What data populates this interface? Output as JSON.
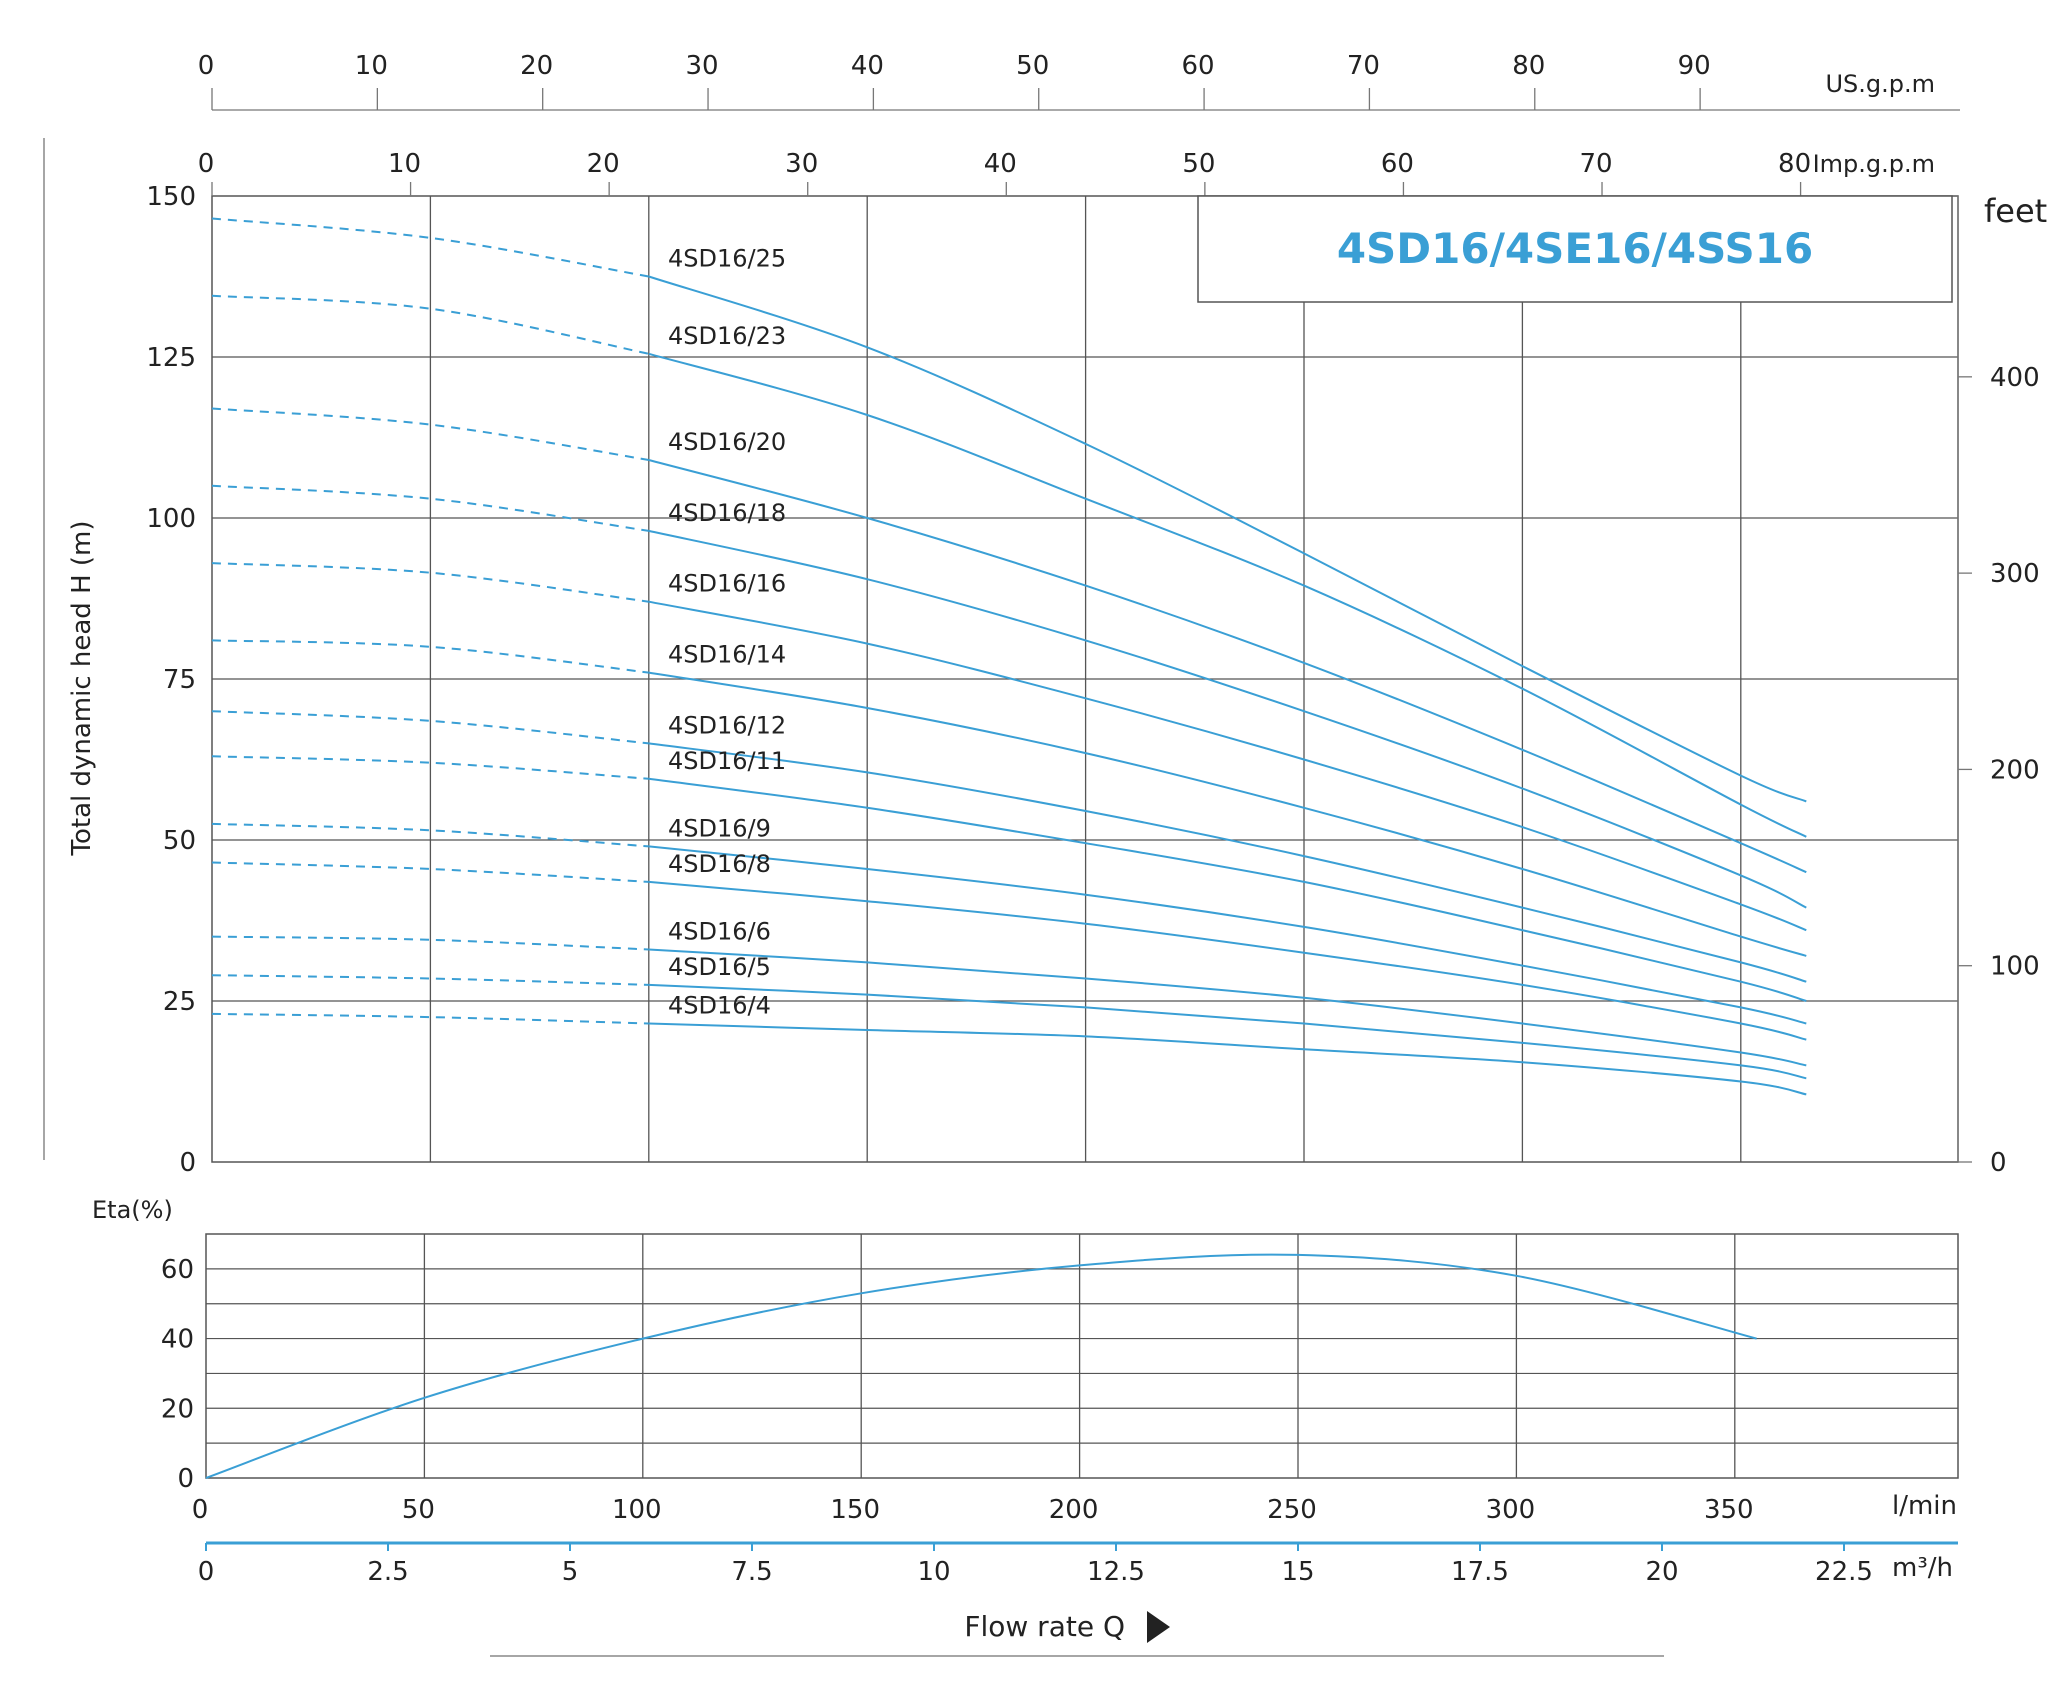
{
  "chart_data": [
    {
      "type": "line",
      "title": "4SD16/4SE16/4SS16",
      "ylabel": "Total dynamic head H (m)",
      "ylabel_right": "feet",
      "xunit_top1": "US.g.p.m",
      "xunit_top2": "Imp.g.p.m",
      "ylim": [
        0,
        150
      ],
      "y_ticks": [
        0,
        25,
        50,
        75,
        100,
        125,
        150
      ],
      "y_ticks_feet": [
        0,
        100,
        200,
        300,
        400
      ],
      "x_ticks_usgpm": [
        0,
        10,
        20,
        30,
        40,
        50,
        60,
        70,
        80,
        90
      ],
      "x_ticks_impgpm": [
        0,
        10,
        20,
        30,
        40,
        50,
        60,
        70,
        80
      ],
      "xlim_lmin": [
        0,
        400
      ],
      "grid": true,
      "dashed_segment_end_lmin": 100,
      "series": [
        {
          "name": "4SD16/25",
          "x": [
            0,
            50,
            100,
            150,
            200,
            250,
            300,
            350,
            365
          ],
          "y": [
            146.5,
            143.5,
            137.5,
            126.5,
            111.5,
            94.5,
            77,
            60,
            56
          ]
        },
        {
          "name": "4SD16/23",
          "x": [
            0,
            50,
            100,
            150,
            200,
            250,
            300,
            350,
            365
          ],
          "y": [
            134.5,
            132.5,
            125.5,
            116,
            103,
            89.5,
            73.5,
            55.5,
            50.5
          ]
        },
        {
          "name": "4SD16/20",
          "x": [
            0,
            50,
            100,
            150,
            200,
            250,
            300,
            350,
            365
          ],
          "y": [
            117,
            114.5,
            109,
            100,
            89.5,
            77.5,
            64,
            49.5,
            45
          ]
        },
        {
          "name": "4SD16/18",
          "x": [
            0,
            50,
            100,
            150,
            200,
            250,
            300,
            350,
            365
          ],
          "y": [
            105,
            103,
            98,
            90.5,
            81,
            70,
            58,
            44.5,
            39.5
          ]
        },
        {
          "name": "4SD16/16",
          "x": [
            0,
            50,
            100,
            150,
            200,
            250,
            300,
            350,
            365
          ],
          "y": [
            93,
            91.5,
            87,
            80.5,
            72,
            62.5,
            52,
            40,
            36
          ]
        },
        {
          "name": "4SD16/14",
          "x": [
            0,
            50,
            100,
            150,
            200,
            250,
            300,
            350,
            365
          ],
          "y": [
            81,
            80,
            76,
            70.5,
            63.5,
            55,
            45.5,
            35,
            32
          ]
        },
        {
          "name": "4SD16/12",
          "x": [
            0,
            50,
            100,
            150,
            200,
            250,
            300,
            350,
            365
          ],
          "y": [
            70,
            68.5,
            65,
            60.5,
            54.5,
            47.5,
            39.5,
            31,
            28
          ]
        },
        {
          "name": "4SD16/11",
          "x": [
            0,
            50,
            100,
            150,
            200,
            250,
            300,
            350,
            365
          ],
          "y": [
            63,
            62,
            59.5,
            55,
            49.5,
            43.5,
            36,
            28,
            25
          ]
        },
        {
          "name": "4SD16/9",
          "x": [
            0,
            50,
            100,
            150,
            200,
            250,
            300,
            350,
            365
          ],
          "y": [
            52.5,
            51.5,
            49,
            45.5,
            41.5,
            36.5,
            30.5,
            24,
            21.5
          ]
        },
        {
          "name": "4SD16/8",
          "x": [
            0,
            50,
            100,
            150,
            200,
            250,
            300,
            350,
            365
          ],
          "y": [
            46.5,
            45.5,
            43.5,
            40.5,
            37,
            32.5,
            27.5,
            21.5,
            19
          ]
        },
        {
          "name": "4SD16/6",
          "x": [
            0,
            50,
            100,
            150,
            200,
            250,
            300,
            350,
            365
          ],
          "y": [
            35,
            34.5,
            33,
            31,
            28.5,
            25.5,
            21.5,
            17,
            15
          ]
        },
        {
          "name": "4SD16/5",
          "x": [
            0,
            50,
            100,
            150,
            200,
            250,
            300,
            350,
            365
          ],
          "y": [
            29,
            28.5,
            27.5,
            26,
            24,
            21.5,
            18.5,
            15,
            13
          ]
        },
        {
          "name": "4SD16/4",
          "x": [
            0,
            50,
            100,
            150,
            200,
            250,
            300,
            350,
            365
          ],
          "y": [
            23,
            22.5,
            21.5,
            20.5,
            19.5,
            17.5,
            15.5,
            12.5,
            10.5
          ]
        }
      ]
    },
    {
      "type": "line",
      "ylabel": "Eta(%)",
      "ylim": [
        0,
        70
      ],
      "y_ticks": [
        0,
        20,
        40,
        60
      ],
      "grid": true,
      "series": [
        {
          "x": [
            0,
            50,
            100,
            150,
            200,
            250,
            300,
            355
          ],
          "y": [
            0,
            23,
            40,
            53,
            61,
            64,
            58,
            40
          ]
        }
      ]
    }
  ],
  "xaxis": {
    "lmin_unit": "l/min",
    "lmin_ticks": [
      0,
      50,
      100,
      150,
      200,
      250,
      300,
      350
    ],
    "m3h_unit": "m³/h",
    "m3h_ticks": [
      "0",
      "2.5",
      "5",
      "7.5",
      "10",
      "12.5",
      "15",
      "17.5",
      "20",
      "22.5"
    ],
    "flow_label": "Flow rate Q"
  },
  "colors": {
    "curve": "#3a9fd5",
    "title": "#3a9fd5",
    "grid": "#555555",
    "axis": "#777777"
  }
}
